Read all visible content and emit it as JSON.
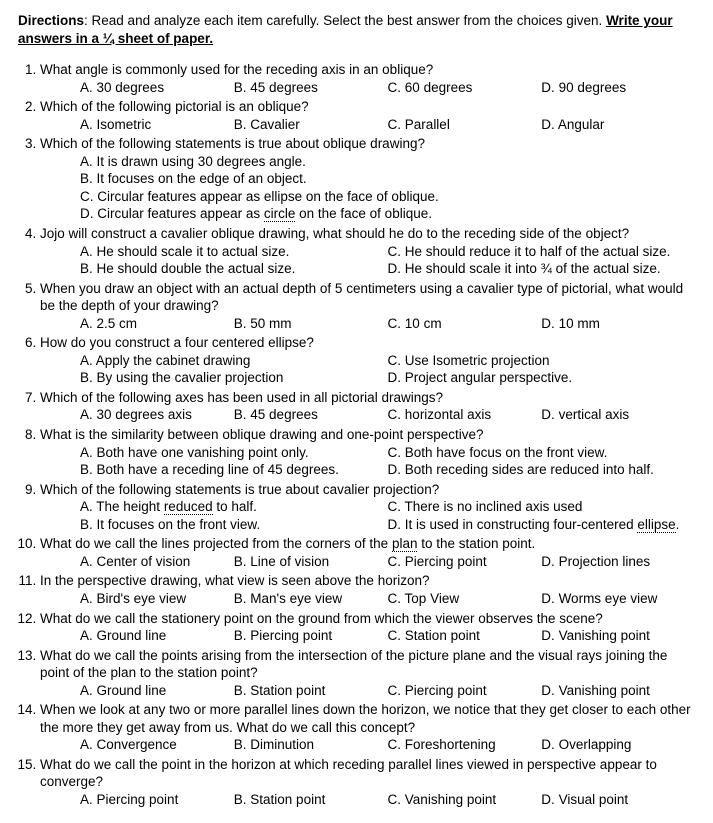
{
  "directions": {
    "prefix_bold": "Directions",
    "body": ": Read and analyze each item carefully. Select the best answer from the choices given. ",
    "tail_bold_underlined": "Write your answers in a ¼ sheet of paper."
  },
  "q": [
    {
      "text": "What angle is commonly used for the receding axis in an oblique?",
      "choices": {
        "A": "30 degrees",
        "B": "45 degrees",
        "C": "60 degrees",
        "D": "90 degrees"
      }
    },
    {
      "text": "Which of the following pictorial is an oblique?",
      "choices": {
        "A": "Isometric",
        "B": "Cavalier",
        "C": "Parallel",
        "D": "Angular"
      }
    },
    {
      "text": "Which of the following statements is true about oblique drawing?",
      "choices": {
        "A": "It is drawn using 30 degrees angle.",
        "B": "It focuses on the edge of an object.",
        "C": "Circular features appear as ellipse on the face of oblique.",
        "D_pre": "Circular features appear as ",
        "D_dot": "circle",
        "D_post": " on the face of oblique."
      }
    },
    {
      "text": "Jojo will construct a cavalier oblique drawing, what should he do to the receding side of the object?",
      "choices": {
        "A": "He should scale it to actual size.",
        "B": "He should double the actual size.",
        "C": "He should reduce it to half of the actual size.",
        "D": "He should scale it into ¾ of the actual size."
      }
    },
    {
      "text": "When you draw an object with an actual depth of 5 centimeters using a cavalier type of pictorial, what would be the depth of your drawing?",
      "choices": {
        "A": "2.5 cm",
        "B": "50 mm",
        "C": "10 cm",
        "D": "10 mm"
      }
    },
    {
      "text": "How do you construct a four centered ellipse?",
      "choices": {
        "A": "Apply the cabinet drawing",
        "B": "By using the cavalier projection",
        "C": "Use Isometric projection",
        "D": "Project angular perspective."
      }
    },
    {
      "text": "Which of the following axes has been used in all pictorial drawings?",
      "choices": {
        "A": "30 degrees axis",
        "B": "45 degrees",
        "C": "horizontal axis",
        "D": "vertical axis"
      }
    },
    {
      "text": "What is the similarity between oblique drawing and one-point perspective?",
      "choices": {
        "A": "Both have one vanishing point only.",
        "B": "Both have a receding line of 45 degrees.",
        "C": "Both have focus on the front view.",
        "D": "Both receding sides are reduced into half."
      }
    },
    {
      "text": "Which of the following statements is true about cavalier projection?",
      "choices": {
        "A_pre": "The height ",
        "A_dot": "reduced",
        "A_post": " to half.",
        "B": "It focuses on the front view.",
        "C": "There is no inclined axis used",
        "D_pre": "It is used in constructing four-centered ",
        "D_dot": "ellipse",
        "D_post": "."
      }
    },
    {
      "text_pre": "What do we call the lines projected from the corners of the ",
      "text_dot": "plan",
      "text_post": " to the station point.",
      "choices": {
        "A": "Center of vision",
        "B": "Line of vision",
        "C": "Piercing point",
        "D": "Projection lines"
      }
    },
    {
      "text": "In the perspective drawing, what view is seen above the horizon?",
      "choices": {
        "A": "Bird's eye view",
        "B": "Man's eye view",
        "C": "Top View",
        "D": "Worms eye view"
      }
    },
    {
      "text": "What do we call the stationery point on the ground from which the viewer observes the scene?",
      "choices": {
        "A": "Ground line",
        "B": "Piercing point",
        "C": "Station point",
        "D": "Vanishing point"
      }
    },
    {
      "text": "What do we call the points arising from the intersection of the picture plane and the visual rays joining the point of the plan to the station point?",
      "choices": {
        "A": "Ground line",
        "B": "Station point",
        "C": "Piercing point",
        "D": "Vanishing point"
      }
    },
    {
      "text": "When we look at any two or more parallel lines down the horizon, we notice that they get closer to each other the more they get away from us. What do we call this concept?",
      "choices": {
        "A": "Convergence",
        "B": "Diminution",
        "C": "Foreshortening",
        "D": "Overlapping"
      }
    },
    {
      "text": "What do we call the point in the horizon at which receding parallel lines viewed in perspective appear to converge?",
      "choices": {
        "A": "Piercing point",
        "B": "Station point",
        "C": "Vanishing point",
        "D": "Visual point"
      }
    }
  ]
}
